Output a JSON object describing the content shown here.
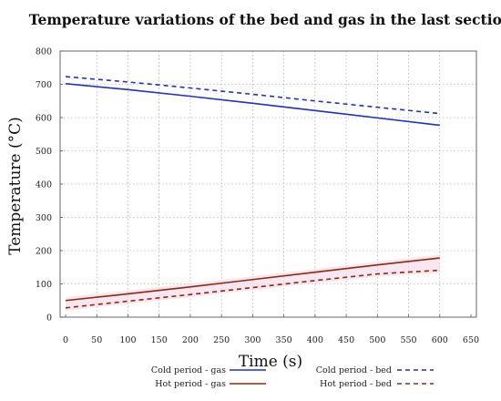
{
  "chart_data": {
    "type": "line",
    "title": "Temperature variations of the bed and gas in the last section",
    "xlabel": "Time (s)",
    "ylabel": "Temperature (°C)",
    "xlim": [
      0,
      650
    ],
    "ylim": [
      0,
      800
    ],
    "xticks": [
      "0",
      "50",
      "100",
      "150",
      "200",
      "250",
      "300",
      "350",
      "400",
      "450",
      "500",
      "550",
      "600",
      "650"
    ],
    "yticks": [
      "0",
      "100",
      "200",
      "300",
      "400",
      "500",
      "600",
      "700",
      "800"
    ],
    "grid": true,
    "legend_placement": "bottom",
    "series": [
      {
        "name": "Cold period - gas",
        "color": "#1f2fd0",
        "style": "solid",
        "x": [
          0,
          100,
          200,
          300,
          400,
          500,
          600
        ],
        "y": [
          702,
          684,
          664,
          643,
          621,
          599,
          577
        ]
      },
      {
        "name": "Cold period - bed",
        "color": "#1f2fd0",
        "style": "dashed",
        "x": [
          0,
          100,
          200,
          300,
          400,
          500,
          600
        ],
        "y": [
          723,
          707,
          689,
          670,
          650,
          631,
          612
        ]
      },
      {
        "name": "Hot period - gas",
        "color": "#8b2a10",
        "style": "solid",
        "x": [
          0,
          100,
          200,
          300,
          400,
          500,
          600
        ],
        "y": [
          50,
          70,
          91,
          113,
          135,
          157,
          178
        ]
      },
      {
        "name": "Hot period - bed",
        "color": "#8b2a10",
        "style": "dashed",
        "x": [
          0,
          100,
          200,
          300,
          400,
          500,
          600
        ],
        "y": [
          28,
          48,
          68,
          89,
          110,
          130,
          141
        ]
      }
    ]
  }
}
